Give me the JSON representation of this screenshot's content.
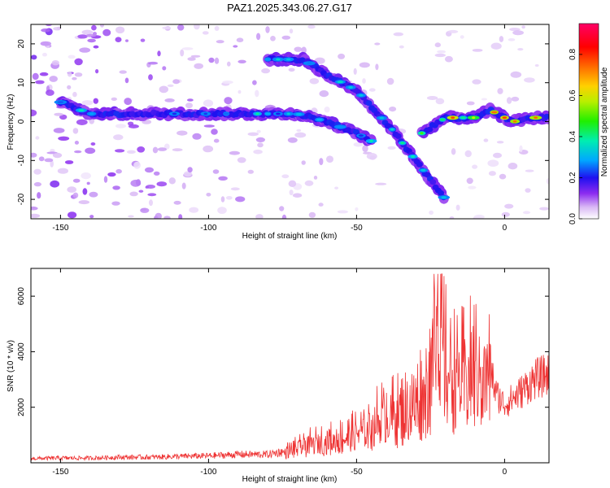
{
  "title": "PAZ1.2025.343.06.27.G17",
  "chart_data": [
    {
      "type": "heatmap",
      "name": "spectrogram",
      "title": "PAZ1.2025.343.06.27.G17",
      "xlabel": "Height of straight line (km)",
      "ylabel": "Frequency (Hz)",
      "xlim": [
        -160,
        15
      ],
      "ylim": [
        -25,
        25
      ],
      "xticks": [
        -150,
        -100,
        -50,
        0
      ],
      "yticks": [
        -20,
        -10,
        0,
        10,
        20
      ],
      "colorbar": {
        "label": "Normalized spectral amplitude",
        "range": [
          0,
          0.95
        ],
        "ticks": [
          0.0,
          0.2,
          0.4,
          0.6,
          0.8
        ]
      },
      "ridges": [
        {
          "name": "constant-frequency band",
          "points": [
            [
              -150,
              5
            ],
            [
              -140,
              2
            ],
            [
              -120,
              2
            ],
            [
              -100,
              2
            ],
            [
              -80,
              2
            ],
            [
              -70,
              2
            ],
            [
              -60,
              0
            ],
            [
              -50,
              -3
            ],
            [
              -45,
              -5
            ]
          ],
          "amplitude": 0.35
        },
        {
          "name": "upper descending track",
          "points": [
            [
              -80,
              16
            ],
            [
              -68,
              16
            ],
            [
              -60,
              12
            ],
            [
              -50,
              8
            ],
            [
              -44,
              3
            ],
            [
              -38,
              -2
            ],
            [
              -33,
              -7
            ],
            [
              -28,
              -12
            ],
            [
              -20,
              -20
            ]
          ],
          "amplitude": 0.4
        },
        {
          "name": "near-zero track",
          "points": [
            [
              -28,
              -3
            ],
            [
              -20,
              1
            ],
            [
              -10,
              1
            ],
            [
              -5,
              3
            ],
            [
              0,
              1
            ],
            [
              3,
              0
            ],
            [
              10,
              1
            ],
            [
              15,
              1
            ]
          ],
          "amplitude": 0.7
        }
      ]
    },
    {
      "type": "line",
      "name": "snr",
      "xlabel": "Height of straight line (km)",
      "ylabel": "SNR (10 * v/v)",
      "xlim": [
        -160,
        15
      ],
      "ylim": [
        0,
        7000
      ],
      "xticks": [
        -150,
        -100,
        -50,
        0
      ],
      "yticks": [
        2000,
        4000,
        6000
      ],
      "color": "#ee3333",
      "x": [
        -160,
        -150,
        -140,
        -130,
        -120,
        -110,
        -100,
        -90,
        -80,
        -75,
        -70,
        -65,
        -60,
        -55,
        -50,
        -45,
        -42,
        -40,
        -35,
        -30,
        -27,
        -25,
        -23,
        -22,
        -20,
        -18,
        -15,
        -10,
        -5,
        -3,
        0,
        5,
        10,
        15
      ],
      "y": [
        150,
        170,
        170,
        200,
        200,
        230,
        250,
        300,
        300,
        400,
        600,
        800,
        900,
        1000,
        1200,
        1500,
        1900,
        2000,
        2000,
        2300,
        3000,
        3500,
        5000,
        5500,
        4000,
        3600,
        3400,
        3800,
        3600,
        2500,
        2100,
        2500,
        3000,
        3200
      ]
    }
  ]
}
